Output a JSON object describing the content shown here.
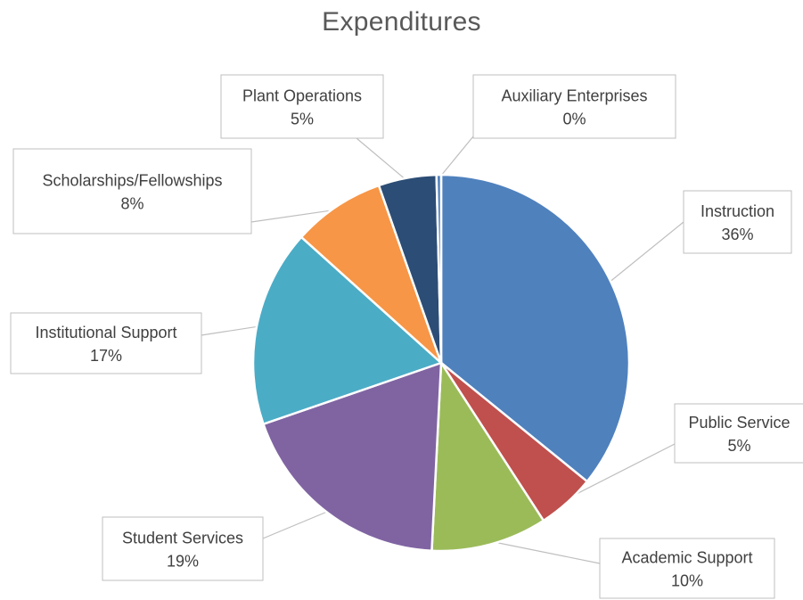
{
  "chart_data": {
    "type": "pie",
    "title": "Expenditures",
    "legend": "none",
    "data_labels": "category-name-and-percent",
    "slices": [
      {
        "name": "Instruction",
        "value": 36,
        "label": "36%",
        "color": "#4F81BD"
      },
      {
        "name": "Public Service",
        "value": 5,
        "label": "5%",
        "color": "#C0504D"
      },
      {
        "name": "Academic Support",
        "value": 10,
        "label": "10%",
        "color": "#9BBB59"
      },
      {
        "name": "Student Services",
        "value": 19,
        "label": "19%",
        "color": "#8064A2"
      },
      {
        "name": "Institutional Support",
        "value": 17,
        "label": "17%",
        "color": "#4BACC6"
      },
      {
        "name": "Scholarships/Fellowships",
        "value": 8,
        "label": "8%",
        "color": "#F79646"
      },
      {
        "name": "Plant Operations",
        "value": 5,
        "label": "5%",
        "color": "#2C4D75"
      },
      {
        "name": "Auxiliary Enterprises",
        "value": 0.4,
        "label": "0%",
        "color": "#4F81BD"
      }
    ]
  }
}
